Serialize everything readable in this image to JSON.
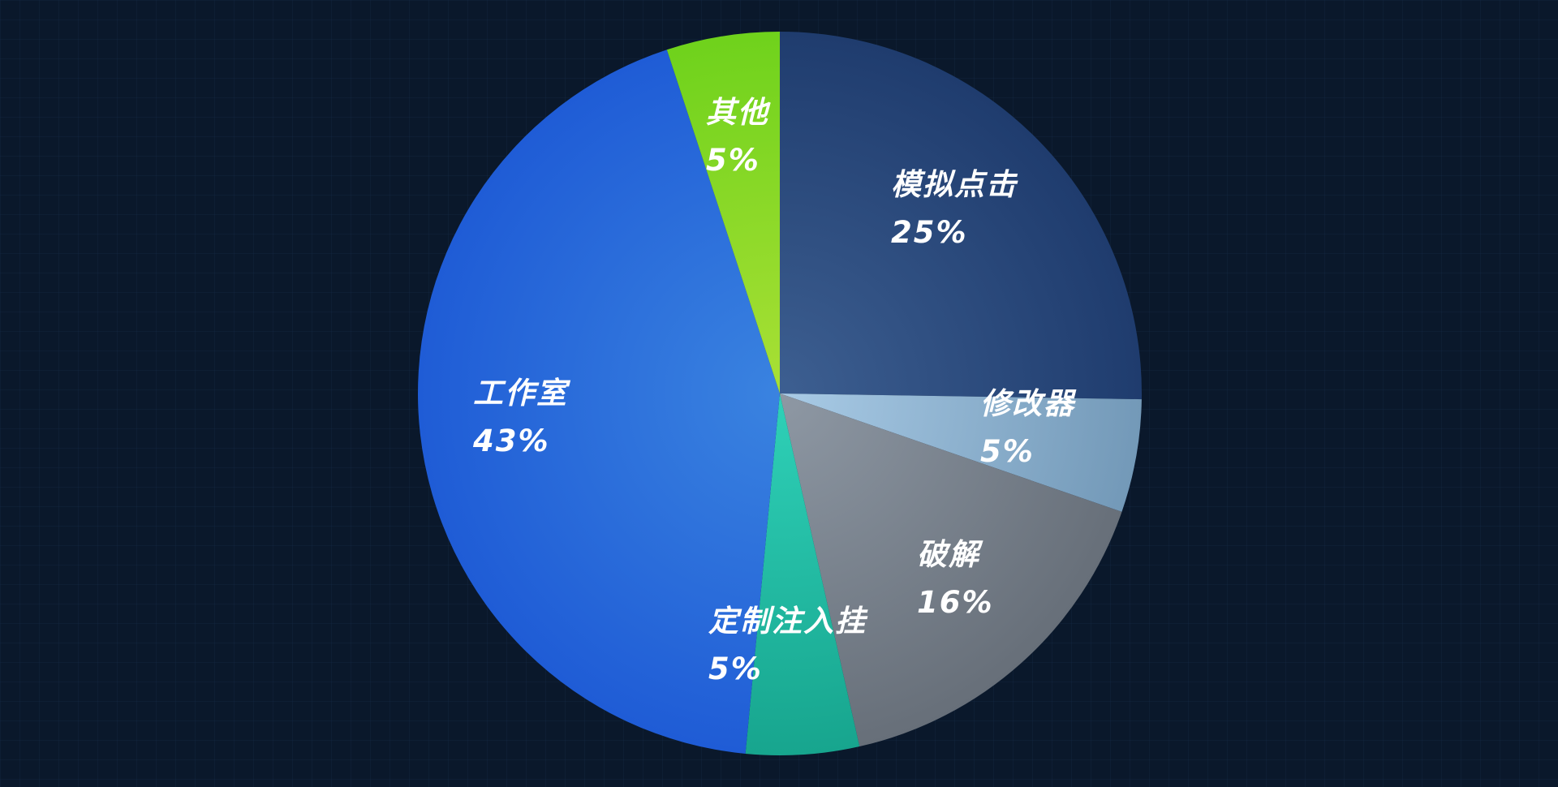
{
  "chart_data": {
    "type": "pie",
    "title": "",
    "slices": [
      {
        "label": "模拟点击",
        "value": 25,
        "display": "25%",
        "color_start": "#3d5f91",
        "color_end": "#1f3c6e"
      },
      {
        "label": "修改器",
        "value": 5,
        "display": "5%",
        "color_start": "#a9cbe6",
        "color_end": "#7399b8"
      },
      {
        "label": "破解",
        "value": 16,
        "display": "16%",
        "color_start": "#8e98a4",
        "color_end": "#676f79"
      },
      {
        "label": "定制注入挂",
        "value": 5,
        "display": "5%",
        "color_start": "#2fd1b8",
        "color_end": "#17a58e"
      },
      {
        "label": "工作室",
        "value": 43,
        "display": "43%",
        "color_start": "#3a83e0",
        "color_end": "#1f5cd6"
      },
      {
        "label": "其他",
        "value": 5,
        "display": "5%",
        "color_start": "#a9e035",
        "color_end": "#6fd21c"
      }
    ],
    "start_angle_deg": 0,
    "direction": "clockwise",
    "legend": "none"
  }
}
